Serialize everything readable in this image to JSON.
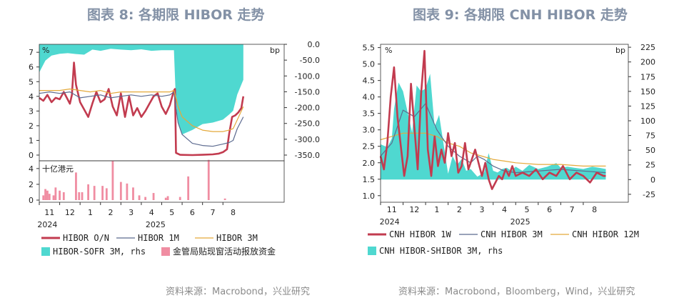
{
  "titles": {
    "left": "图表 8:  各期限 HIBOR 走势",
    "right": "图表 9:  各期限 CNH HIBOR 走势"
  },
  "sources": {
    "left": "资料来源：Macrobond，兴业研究",
    "right": "资料来源：Macrobond，Bloomberg，Wind，兴业研究"
  },
  "chart_data": [
    {
      "type": "line",
      "panel": "top",
      "unit_left": "%",
      "unit_right": "bp",
      "ylim": [
        0,
        7.3
      ],
      "yticks": [
        0,
        1,
        2,
        3,
        4,
        5,
        6,
        7
      ],
      "ylim_right": [
        -375,
        0
      ],
      "yticks_right": [
        "0.0",
        "-50.0",
        "-100.0",
        "-150.0",
        "-200.0",
        "-250.0",
        "-300.0",
        "-350.0"
      ],
      "xlim": [
        0,
        12
      ],
      "month_ticks": [
        {
          "x": 0.5,
          "label": "11"
        },
        {
          "x": 1.5,
          "label": "12"
        },
        {
          "x": 2.5,
          "label": "1"
        },
        {
          "x": 3.5,
          "label": "2"
        },
        {
          "x": 4.5,
          "label": "3"
        },
        {
          "x": 5.5,
          "label": "4"
        },
        {
          "x": 6.5,
          "label": "5"
        },
        {
          "x": 7.5,
          "label": "6"
        },
        {
          "x": 8.5,
          "label": "7"
        },
        {
          "x": 9.5,
          "label": "8"
        }
      ],
      "year_labels": [
        {
          "x": 0.4,
          "label": "2024"
        },
        {
          "x": 5.7,
          "label": "2025"
        }
      ],
      "series": [
        {
          "name": "HIBOR-SOFR 3M, rhs",
          "kind": "area",
          "axis": "right",
          "color": "#4fd8d0",
          "x": [
            0,
            0.3,
            0.6,
            1.0,
            1.4,
            1.8,
            2.2,
            2.6,
            3.0,
            3.5,
            4.0,
            4.5,
            5.0,
            5.5,
            6.0,
            6.6,
            6.7,
            6.8,
            7.0,
            7.5,
            8.0,
            8.5,
            9.0,
            9.3,
            9.5,
            9.7,
            10.0
          ],
          "y": [
            -95,
            -55,
            -38,
            -32,
            -30,
            -33,
            -35,
            -18,
            -22,
            -15,
            -18,
            -20,
            -17,
            -22,
            -20,
            -20,
            -200,
            -265,
            -305,
            -290,
            -270,
            -265,
            -255,
            -238,
            -225,
            -170,
            -120
          ]
        },
        {
          "name": "HIBOR O/N",
          "kind": "line",
          "axis": "left",
          "color": "#c23b4f",
          "width": 2.6,
          "x": [
            0,
            0.2,
            0.4,
            0.6,
            0.8,
            1.0,
            1.2,
            1.5,
            1.6,
            1.7,
            1.8,
            2.0,
            2.2,
            2.4,
            2.6,
            2.8,
            3.0,
            3.2,
            3.4,
            3.6,
            3.8,
            4.0,
            4.2,
            4.4,
            4.6,
            4.8,
            5.0,
            5.2,
            5.4,
            5.6,
            5.8,
            6.0,
            6.2,
            6.4,
            6.6,
            6.65,
            6.7,
            6.9,
            7.5,
            8.0,
            8.5,
            8.8,
            9.0,
            9.2,
            9.3,
            9.45,
            9.6,
            9.75,
            9.9,
            10.0
          ],
          "y": [
            3.9,
            3.7,
            4.1,
            3.6,
            3.9,
            3.8,
            4.3,
            3.5,
            4.1,
            6.3,
            4.8,
            3.6,
            3.1,
            2.6,
            3.5,
            4.3,
            3.6,
            3.8,
            4.5,
            3.3,
            2.7,
            4.2,
            2.6,
            4.0,
            2.7,
            3.2,
            2.6,
            3.0,
            3.5,
            4.0,
            4.2,
            3.3,
            2.8,
            3.4,
            4.4,
            4.5,
            0.15,
            0.02,
            0.0,
            0.02,
            0.05,
            0.1,
            0.2,
            0.4,
            1.4,
            2.6,
            2.7,
            2.9,
            3.2,
            4.0
          ]
        },
        {
          "name": "HIBOR 1M",
          "kind": "line",
          "axis": "left",
          "color": "#5c6a8f",
          "width": 1.2,
          "x": [
            0,
            0.5,
            1.0,
            1.5,
            2.0,
            2.5,
            3.0,
            3.5,
            4.0,
            4.5,
            5.0,
            5.5,
            6.0,
            6.4,
            6.6,
            6.7,
            6.8,
            7.0,
            7.5,
            8.0,
            8.5,
            9.0,
            9.3,
            9.5,
            9.7,
            10.0
          ],
          "y": [
            4.2,
            4.3,
            4.2,
            4.3,
            3.9,
            4.0,
            4.1,
            3.9,
            4.0,
            4.1,
            4.0,
            4.1,
            4.0,
            4.1,
            4.3,
            3.2,
            2.2,
            1.4,
            0.8,
            0.65,
            0.6,
            0.75,
            0.85,
            1.0,
            1.8,
            2.6
          ]
        },
        {
          "name": "HIBOR 3M",
          "kind": "line",
          "axis": "left",
          "color": "#e4a93b",
          "width": 1.2,
          "x": [
            0,
            0.5,
            1.0,
            1.5,
            2.0,
            2.5,
            3.0,
            3.5,
            4.0,
            4.5,
            5.0,
            5.5,
            6.0,
            6.4,
            6.6,
            6.7,
            6.8,
            7.0,
            7.5,
            8.0,
            8.5,
            9.0,
            9.3,
            9.5,
            9.7,
            10.0
          ],
          "y": [
            4.4,
            4.4,
            4.4,
            4.5,
            4.4,
            4.3,
            4.4,
            4.2,
            4.3,
            4.3,
            4.3,
            4.3,
            4.3,
            4.3,
            4.4,
            3.9,
            3.3,
            2.6,
            2.0,
            1.7,
            1.6,
            1.6,
            1.7,
            1.8,
            2.4,
            3.3
          ]
        }
      ]
    },
    {
      "type": "bar",
      "panel": "bottom",
      "ylabel": "十亿港元",
      "ylim": [
        0,
        4.8
      ],
      "yticks": [
        0,
        2,
        4
      ],
      "xlim": [
        0,
        12
      ],
      "series": [
        {
          "name": "金管局贴现窗活动报放资金",
          "color": "#f08da2",
          "x": [
            0.2,
            0.3,
            0.4,
            0.5,
            0.7,
            0.8,
            1.0,
            1.2,
            1.8,
            1.95,
            2.1,
            2.4,
            2.7,
            3.1,
            3.3,
            3.6,
            4.0,
            4.3,
            4.6,
            4.9,
            5.2,
            5.6,
            6.2,
            6.3,
            6.9,
            7.3,
            8.3,
            9.1
          ],
          "y": [
            0.6,
            1.4,
            1.2,
            0.8,
            0.6,
            1.6,
            1.2,
            1.0,
            3.5,
            1.0,
            1.0,
            2.0,
            1.8,
            1.8,
            1.5,
            5.0,
            2.3,
            2.1,
            1.6,
            0.6,
            0.4,
            0.9,
            0.3,
            0.5,
            0.4,
            3.0,
            5.1,
            0.2
          ]
        }
      ]
    },
    {
      "type": "line",
      "panel": "right",
      "unit_left": "%",
      "unit_right": "bp",
      "ylim": [
        0.8,
        5.6
      ],
      "yticks": [
        1.0,
        1.5,
        2.0,
        2.5,
        3.0,
        3.5,
        4.0,
        4.5,
        5.0,
        5.5
      ],
      "yticks_labels": [
        "1.0",
        "1.5",
        "2.0",
        "2.5",
        "3.0",
        "3.5",
        "4.0",
        "4.5",
        "5.0",
        "5.5"
      ],
      "ylim_right": [
        -38.5,
        230
      ],
      "yticks_right": [
        -25,
        0,
        25,
        50,
        75,
        100,
        125,
        150,
        175,
        200,
        225
      ],
      "xlim": [
        0,
        11
      ],
      "month_ticks": [
        {
          "x": 0.5,
          "label": "11"
        },
        {
          "x": 1.5,
          "label": "12"
        },
        {
          "x": 2.5,
          "label": "1"
        },
        {
          "x": 3.5,
          "label": "2"
        },
        {
          "x": 4.5,
          "label": "3"
        },
        {
          "x": 5.5,
          "label": "4"
        },
        {
          "x": 6.5,
          "label": "5"
        },
        {
          "x": 7.5,
          "label": "6"
        },
        {
          "x": 8.5,
          "label": "7"
        },
        {
          "x": 9.5,
          "label": "8"
        }
      ],
      "year_labels": [
        {
          "x": 0.4,
          "label": "2024"
        },
        {
          "x": 6.2,
          "label": "2025"
        }
      ],
      "series": [
        {
          "name": "CNH HIBOR-SHIBOR 3M, rhs",
          "kind": "area",
          "axis": "right",
          "color": "#4fd8d0",
          "x": [
            0,
            0.3,
            0.5,
            0.6,
            0.8,
            1.0,
            1.2,
            1.4,
            1.6,
            1.8,
            2.0,
            2.2,
            2.4,
            2.6,
            2.8,
            3.0,
            3.2,
            3.4,
            3.6,
            3.8,
            4.0,
            4.3,
            4.6,
            4.8,
            5.0,
            5.2,
            5.4,
            5.6,
            5.8,
            6.0,
            6.3,
            6.6,
            7.0,
            7.4,
            7.8,
            8.0,
            8.3,
            8.6,
            9.0,
            9.4,
            9.7,
            10.0
          ],
          "y": [
            60,
            55,
            70,
            120,
            165,
            150,
            115,
            80,
            160,
            150,
            155,
            180,
            90,
            110,
            60,
            10,
            40,
            25,
            35,
            15,
            18,
            5,
            12,
            45,
            15,
            12,
            18,
            20,
            15,
            22,
            15,
            25,
            18,
            22,
            28,
            20,
            22,
            20,
            18,
            22,
            20,
            18
          ]
        },
        {
          "name": "CNH HIBOR 1W",
          "kind": "line",
          "axis": "left",
          "color": "#c23b4f",
          "width": 2.6,
          "x": [
            0,
            0.15,
            0.3,
            0.45,
            0.6,
            0.75,
            0.9,
            1.05,
            1.2,
            1.35,
            1.5,
            1.65,
            1.8,
            1.95,
            2.1,
            2.25,
            2.4,
            2.55,
            2.7,
            2.85,
            3.0,
            3.15,
            3.3,
            3.45,
            3.6,
            3.75,
            3.9,
            4.05,
            4.2,
            4.35,
            4.5,
            4.65,
            4.8,
            4.95,
            5.1,
            5.25,
            5.4,
            5.55,
            5.7,
            5.85,
            6.0,
            6.3,
            6.6,
            6.9,
            7.2,
            7.5,
            7.8,
            8.1,
            8.4,
            8.7,
            9.0,
            9.3,
            9.6,
            9.9,
            10.0
          ],
          "y": [
            2.2,
            1.8,
            2.6,
            4.0,
            4.9,
            3.4,
            2.5,
            1.6,
            2.2,
            4.4,
            3.1,
            1.8,
            4.1,
            5.4,
            2.4,
            1.6,
            2.8,
            1.9,
            2.4,
            2.0,
            2.9,
            2.2,
            2.6,
            1.7,
            1.9,
            2.6,
            1.8,
            2.1,
            2.4,
            2.0,
            1.6,
            2.0,
            1.5,
            1.2,
            1.4,
            1.6,
            1.5,
            1.8,
            1.6,
            1.9,
            1.6,
            1.7,
            1.6,
            1.8,
            1.5,
            1.7,
            1.6,
            1.9,
            1.5,
            1.7,
            1.6,
            1.4,
            1.7,
            1.6,
            1.6
          ]
        },
        {
          "name": "CNH HIBOR 3M",
          "kind": "line",
          "axis": "left",
          "color": "#5c6a8f",
          "width": 1.2,
          "x": [
            0,
            0.5,
            1.0,
            1.5,
            2.0,
            2.5,
            3.0,
            3.5,
            4.0,
            4.3,
            4.6,
            5.0,
            5.5,
            6.0,
            7.0,
            8.0,
            9.0,
            10.0
          ],
          "y": [
            2.2,
            2.6,
            3.6,
            3.4,
            3.8,
            3.0,
            2.5,
            2.2,
            2.0,
            2.2,
            2.1,
            1.9,
            1.75,
            1.7,
            1.75,
            1.8,
            1.75,
            1.7
          ]
        },
        {
          "name": "CNH HIBOR 12M",
          "kind": "line",
          "axis": "left",
          "color": "#e4a93b",
          "width": 1.2,
          "x": [
            0,
            0.5,
            1.0,
            1.5,
            2.0,
            2.5,
            3.0,
            3.5,
            4.0,
            4.5,
            5.0,
            5.5,
            6.0,
            7.0,
            8.0,
            9.0,
            10.0
          ],
          "y": [
            2.7,
            2.8,
            2.9,
            2.9,
            2.9,
            2.8,
            2.6,
            2.5,
            2.3,
            2.2,
            2.1,
            2.05,
            2.0,
            1.95,
            1.95,
            1.9,
            1.9
          ]
        }
      ]
    }
  ],
  "legends": {
    "left": {
      "row1": [
        {
          "label": "HIBOR O/N",
          "color": "#c23b4f",
          "style": "thick"
        },
        {
          "label": "HIBOR 1M",
          "color": "#5c6a8f",
          "style": "thin"
        },
        {
          "label": "HIBOR 3M",
          "color": "#e4a93b",
          "style": "thin"
        }
      ],
      "row2": [
        {
          "label": "HIBOR-SOFR 3M, rhs",
          "color": "#4fd8d0",
          "style": "box"
        },
        {
          "label": "金管局贴现窗活动报放资金",
          "color": "#f08da2",
          "style": "box"
        }
      ]
    },
    "right": {
      "row1": [
        {
          "label": "CNH HIBOR 1W",
          "color": "#c23b4f",
          "style": "thick"
        },
        {
          "label": "CNH HIBOR 3M",
          "color": "#5c6a8f",
          "style": "thin"
        },
        {
          "label": "CNH HIBOR 12M",
          "color": "#e4a93b",
          "style": "thin"
        }
      ],
      "row2": [
        {
          "label": "CNH HIBOR-SHIBOR 3M, rhs",
          "color": "#4fd8d0",
          "style": "box"
        }
      ]
    }
  }
}
